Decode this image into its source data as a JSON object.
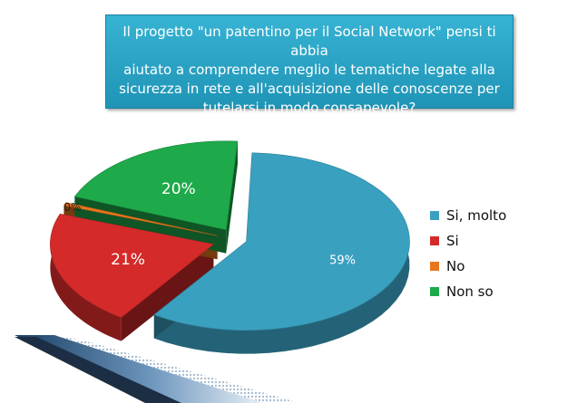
{
  "title": "Il progetto \"un patentino per il Social Network\" pensi ti abbia aiutato a comprendere meglio le tematiche legate alla sicurezza in rete e all'acquisizione delle conoscenze per tutelarsi in modo consapevole?",
  "title_lines": [
    "Il progetto \"un patentino per il Social Network\" pensi ti abbia",
    "aiutato a comprendere meglio le tematiche legate alla",
    "sicurezza in rete e all'acquisizione delle conoscenze per",
    "tutelarsi in modo consapevole?"
  ],
  "chart_data": {
    "type": "pie",
    "categories": [
      "Si, molto",
      "Si",
      "No",
      "Non so"
    ],
    "values": [
      59,
      21,
      0,
      20
    ],
    "labels": [
      "59%",
      "21%",
      "0%",
      "20%"
    ],
    "colors": [
      "#3aa0c0",
      "#d42a2a",
      "#e8761b",
      "#1eaa4a"
    ],
    "legend_position": "right",
    "exploded": true,
    "style": "3d"
  }
}
